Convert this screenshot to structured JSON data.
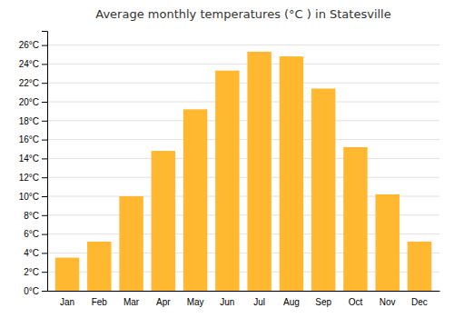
{
  "chart_data": {
    "type": "bar",
    "title": "Average monthly temperatures (°C ) in Statesville",
    "categories": [
      "Jan",
      "Feb",
      "Mar",
      "Apr",
      "May",
      "Jun",
      "Jul",
      "Aug",
      "Sep",
      "Oct",
      "Nov",
      "Dec"
    ],
    "values": [
      3.5,
      5.2,
      10.0,
      14.8,
      19.2,
      23.3,
      25.3,
      24.8,
      21.4,
      15.2,
      10.2,
      5.2
    ],
    "color": "#FFB830",
    "ylim": [
      0,
      27.5
    ],
    "yticks": [
      {
        "value": 0,
        "label": "0°C"
      },
      {
        "value": 2,
        "label": "2°C"
      },
      {
        "value": 4,
        "label": "4°C"
      },
      {
        "value": 6,
        "label": "6°C"
      },
      {
        "value": 8,
        "label": "8°C"
      },
      {
        "value": 10,
        "label": "10°C"
      },
      {
        "value": 12,
        "label": "12°C"
      },
      {
        "value": 14,
        "label": "14°C"
      },
      {
        "value": 16,
        "label": "16°C"
      },
      {
        "value": 18,
        "label": "18°C"
      },
      {
        "value": 20,
        "label": "20°C"
      },
      {
        "value": 22,
        "label": "22°C"
      },
      {
        "value": 24,
        "label": "24°C"
      },
      {
        "value": 26,
        "label": "26°C"
      }
    ],
    "grid": true
  }
}
